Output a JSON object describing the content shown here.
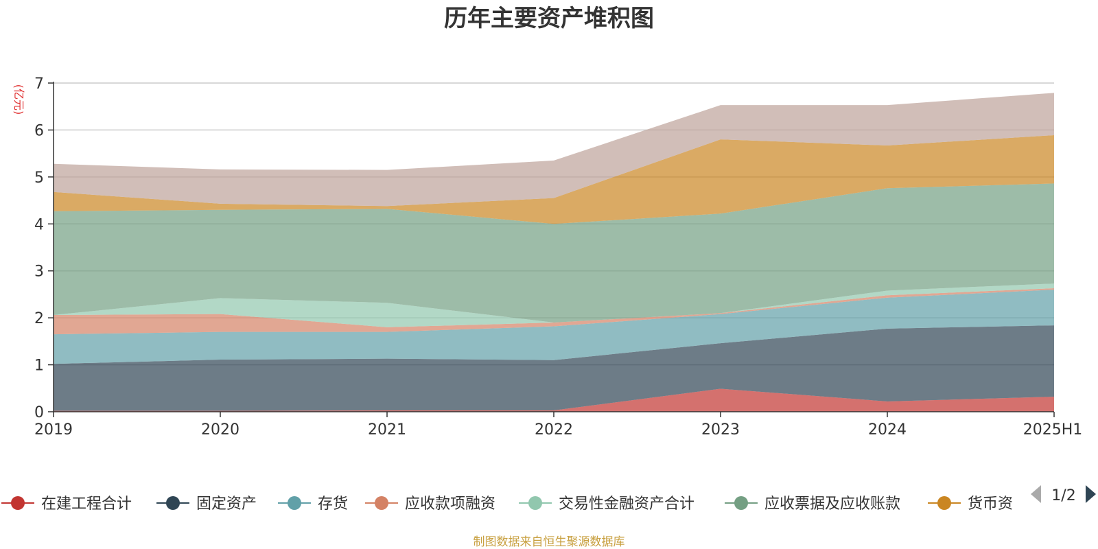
{
  "chart_data": {
    "type": "area",
    "stacked": true,
    "title": "历年主要资产堆积图",
    "y_unit": "(亿元)",
    "categories": [
      "2019",
      "2020",
      "2021",
      "2022",
      "2023",
      "2024",
      "2025H1"
    ],
    "ylim": [
      0,
      7
    ],
    "yticks": [
      "0",
      "1",
      "2",
      "3",
      "4",
      "5",
      "6",
      "7"
    ],
    "grid": true,
    "legend_position": "bottom",
    "series": [
      {
        "name": "在建工程合计",
        "color": "#c23531",
        "values": [
          0.02,
          0.02,
          0.03,
          0.03,
          0.49,
          0.22,
          0.32
        ]
      },
      {
        "name": "固定资产",
        "color": "#2f4554",
        "values": [
          1.0,
          1.09,
          1.1,
          1.07,
          0.97,
          1.55,
          1.52
        ]
      },
      {
        "name": "存货",
        "color": "#61a0a8",
        "values": [
          0.63,
          0.59,
          0.57,
          0.72,
          0.62,
          0.66,
          0.76
        ]
      },
      {
        "name": "应收款项融资",
        "color": "#d48265",
        "values": [
          0.41,
          0.38,
          0.1,
          0.08,
          0.02,
          0.05,
          0.03
        ]
      },
      {
        "name": "交易性金融资产合计",
        "color": "#91c7ae",
        "values": [
          0.0,
          0.34,
          0.52,
          0.0,
          0.0,
          0.1,
          0.1
        ]
      },
      {
        "name": "应收票据及应收账款",
        "color": "#749f83",
        "values": [
          2.21,
          1.88,
          2.0,
          2.1,
          2.12,
          2.18,
          2.13
        ]
      },
      {
        "name": "货币资",
        "color": "#ca8622",
        "values": [
          0.41,
          0.13,
          0.06,
          0.55,
          1.58,
          0.91,
          1.03
        ]
      },
      {
        "name": "",
        "color": "#bda29a",
        "values": [
          0.6,
          0.73,
          0.77,
          0.8,
          0.73,
          0.86,
          0.9
        ]
      }
    ]
  },
  "legend": {
    "page": "1/2"
  },
  "source": "制图数据来自恒生聚源数据库"
}
